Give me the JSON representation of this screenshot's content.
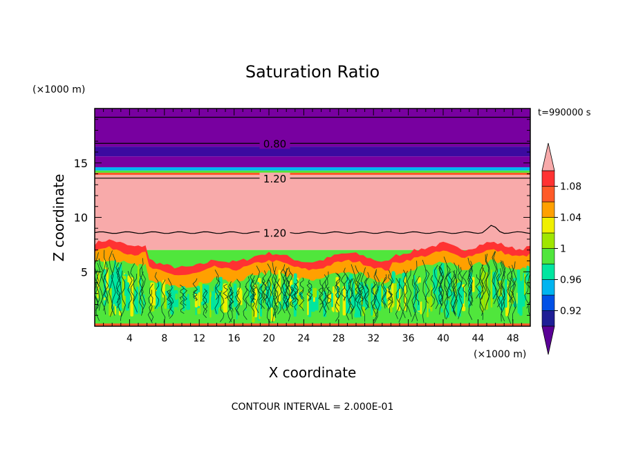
{
  "chart_data": {
    "type": "heatmap",
    "title": "Saturation Ratio",
    "xlabel": "X coordinate",
    "ylabel": "Z coordinate",
    "x_unit": "(×1000 m)",
    "y_unit": "(×1000 m)",
    "xlim": [
      0,
      50
    ],
    "ylim": [
      0,
      20
    ],
    "x_ticks": [
      4,
      8,
      12,
      16,
      20,
      24,
      28,
      32,
      36,
      40,
      44,
      48
    ],
    "y_ticks": [
      5,
      10,
      15
    ],
    "time_label": "t=990000 s",
    "footer": "CONTOUR INTERVAL = 2.000E-01",
    "contour_labels": [
      {
        "text": "0.80",
        "x": 17.5,
        "z": 16.8
      },
      {
        "text": "1.20",
        "x": 17.5,
        "z": 13.6
      },
      {
        "text": "1.20",
        "x": 17.5,
        "z": 8.6
      }
    ],
    "colorbar": {
      "levels": [
        "0.90",
        "0.92",
        "0.94",
        "0.96",
        "0.98",
        "1",
        "1.02",
        "1.04",
        "1.06",
        "1.08",
        "1.10"
      ],
      "colors": [
        "#5a0096",
        "#1e1e96",
        "#0050e6",
        "#00b4f0",
        "#00e6a0",
        "#50e63c",
        "#a0e600",
        "#f0f000",
        "#ffa000",
        "#ff5a28",
        "#ff3232",
        "#f8aaaa"
      ],
      "tick_labels": [
        "0.92",
        "0.96",
        "1",
        "1.04",
        "1.08"
      ],
      "under_color": "#5a0096",
      "over_color": "#f8aaaa"
    },
    "layers": [
      {
        "z_min": 16.5,
        "z_max": 20,
        "color": "#7800a0"
      },
      {
        "z_min": 15.6,
        "z_max": 16.5,
        "color": "#3c0aa0"
      },
      {
        "z_min": 14.6,
        "z_max": 15.6,
        "color": "#7800a0"
      },
      {
        "z_min": 14.3,
        "z_max": 14.6,
        "color": "#00b4f0"
      },
      {
        "z_min": 14.1,
        "z_max": 14.3,
        "color": "#50e63c"
      },
      {
        "z_min": 13.9,
        "z_max": 14.1,
        "color": "#ff5a28"
      },
      {
        "z_min": 7.0,
        "z_max": 13.9,
        "color": "#f8aaaa"
      },
      {
        "z_min": 0,
        "z_max": 7.0,
        "color": "#50e63c"
      }
    ]
  }
}
